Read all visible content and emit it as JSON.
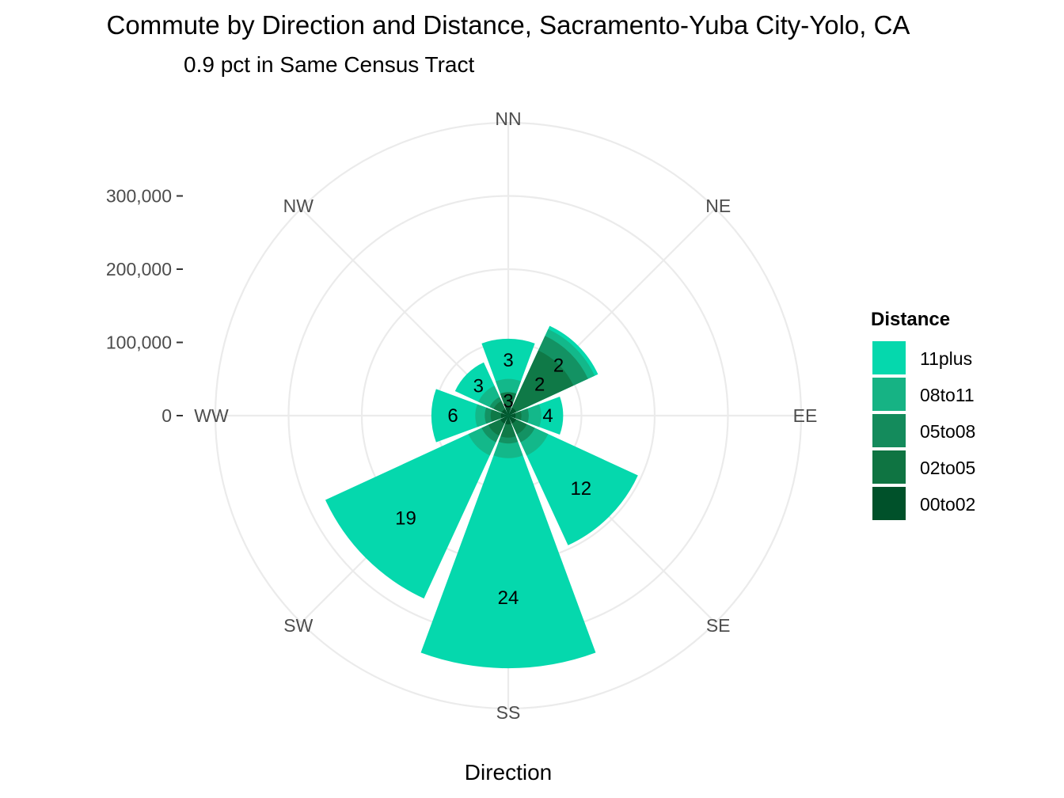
{
  "chart_data": {
    "type": "bar",
    "coord": "polar",
    "title": "Commute by Direction and Distance, Sacramento-Yuba City-Yolo, CA",
    "subtitle": "0.9 pct in Same Census Tract",
    "xlabel": "Direction",
    "ylabel": "",
    "categories": [
      "NN",
      "NE",
      "EE",
      "SE",
      "SS",
      "SW",
      "WW",
      "NW"
    ],
    "radial_ticks": [
      {
        "value": 0,
        "label": "0"
      },
      {
        "value": 100000,
        "label": "100,000"
      },
      {
        "value": 200000,
        "label": "200,000"
      },
      {
        "value": 300000,
        "label": "300,000"
      }
    ],
    "ylim": [
      0,
      400000
    ],
    "grid": true,
    "legend": {
      "title": "Distance",
      "placement": "right"
    },
    "series": [
      {
        "name": "00to02",
        "color": "#00512a",
        "values": [
          12000,
          12000,
          10000,
          12000,
          12000,
          12000,
          10000,
          10000
        ]
      },
      {
        "name": "02to05",
        "color": "#0f7442",
        "values": [
          32000,
          98000,
          18000,
          28000,
          30000,
          30000,
          24000,
          22000
        ]
      },
      {
        "name": "05to08",
        "color": "#148b5c",
        "values": [
          28000,
          120000,
          28000,
          40000,
          38000,
          40000,
          32000,
          28000
        ]
      },
      {
        "name": "08to11",
        "color": "#16b384",
        "values": [
          50000,
          130000,
          45000,
          60000,
          58000,
          60000,
          45000,
          45000
        ]
      },
      {
        "name": "11plus",
        "color": "#05d8ad",
        "values": [
          105000,
          135000,
          75000,
          195000,
          345000,
          275000,
          105000,
          80000
        ]
      }
    ],
    "bar_labels": [
      {
        "category": "NN",
        "series": "11plus",
        "text": "3"
      },
      {
        "category": "NN",
        "series": "02to05",
        "text": "3"
      },
      {
        "category": "NE",
        "series": "11plus",
        "text": "2"
      },
      {
        "category": "NE",
        "series": "02to05",
        "text": "2"
      },
      {
        "category": "EE",
        "series": "11plus",
        "text": "4"
      },
      {
        "category": "SE",
        "series": "11plus",
        "text": "12"
      },
      {
        "category": "SS",
        "series": "11plus",
        "text": "24"
      },
      {
        "category": "SW",
        "series": "11plus",
        "text": "19"
      },
      {
        "category": "WW",
        "series": "11plus",
        "text": "6"
      },
      {
        "category": "NW",
        "series": "11plus",
        "text": "3"
      }
    ]
  }
}
